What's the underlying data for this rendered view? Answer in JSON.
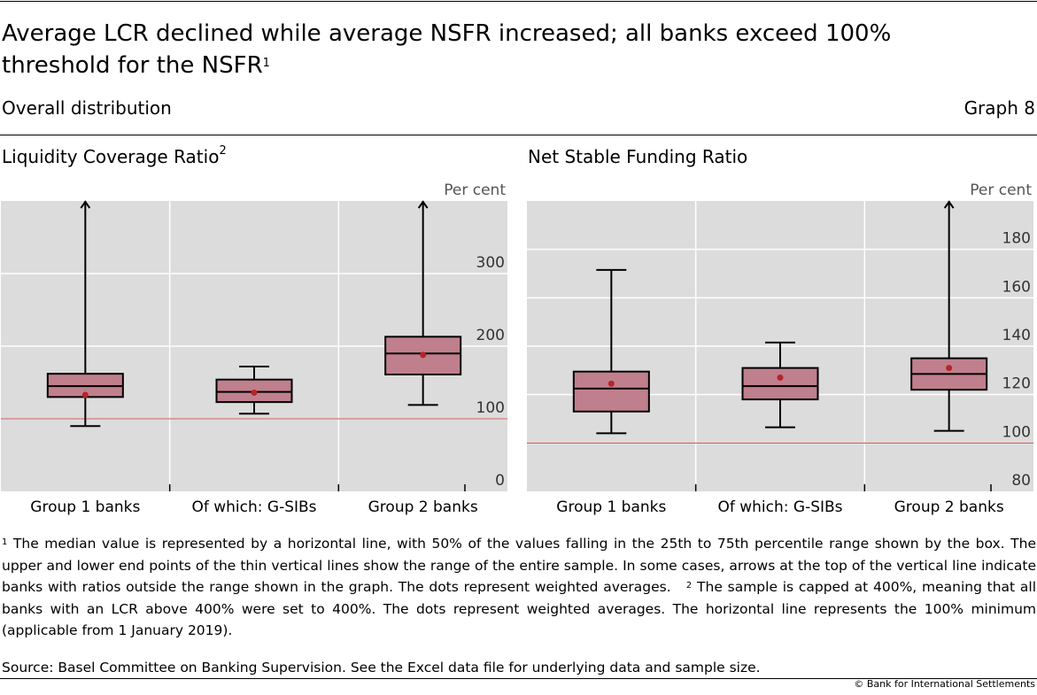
{
  "title": "Average LCR declined while average NSFR increased; all banks exceed 100% threshold for the NSFR",
  "title_note": "1",
  "subtitle": "Overall distribution",
  "graph_label": "Graph 8",
  "colors": {
    "panel_bg": "#dcdcdc",
    "box_fill": "#c07f8d",
    "dot": "#b5252a",
    "threshold": "#c0504d"
  },
  "chart_data": [
    {
      "type": "box",
      "title": "Liquidity Coverage Ratio",
      "title_note": "2",
      "unit_label": "Per cent",
      "categories": [
        "Group 1 banks",
        "Of which: G-SIBs",
        "Group 2 banks"
      ],
      "ylim": [
        0,
        400
      ],
      "yticks": [
        0,
        100,
        200,
        300
      ],
      "threshold": 100,
      "grid": true,
      "boxes": [
        {
          "min": 90,
          "q1": 130,
          "median": 145,
          "q3": 162,
          "max": 400,
          "weighted_avg": 133,
          "arrow": true
        },
        {
          "min": 107,
          "q1": 123,
          "median": 137,
          "q3": 154,
          "max": 172,
          "weighted_avg": 136,
          "arrow": false
        },
        {
          "min": 119,
          "q1": 161,
          "median": 190,
          "q3": 213,
          "max": 400,
          "weighted_avg": 188,
          "arrow": true
        }
      ]
    },
    {
      "type": "box",
      "title": "Net Stable Funding Ratio",
      "unit_label": "Per cent",
      "categories": [
        "Group 1 banks",
        "Of which: G-SIBs",
        "Group 2 banks"
      ],
      "ylim": [
        80,
        200
      ],
      "yticks": [
        80,
        100,
        120,
        140,
        160,
        180
      ],
      "threshold": 100,
      "grid": true,
      "boxes": [
        {
          "min": 104,
          "q1": 113,
          "median": 122.5,
          "q3": 129.5,
          "max": 171.5,
          "weighted_avg": 124.5,
          "arrow": false
        },
        {
          "min": 106.5,
          "q1": 118,
          "median": 123.5,
          "q3": 131,
          "max": 141.5,
          "weighted_avg": 127,
          "arrow": false
        },
        {
          "min": 105,
          "q1": 122,
          "median": 128.5,
          "q3": 135,
          "max": 200,
          "weighted_avg": 131,
          "arrow": true
        }
      ]
    }
  ],
  "footnotes": {
    "note1_marker": "1",
    "note1_text": "The median value is represented by a horizontal line, with 50% of the values falling in the 25th to 75th percentile range shown by the box. The upper and lower end points of the thin vertical lines show the range of the entire sample. In some cases, arrows at the top of the vertical line indicate banks with ratios outside the range shown in the graph. The dots represent weighted averages.",
    "note2_marker": "2",
    "note2_text": "The sample is capped at 400%, meaning that all banks with an LCR above 400% were set to 400%. The dots represent weighted averages. The horizontal line represents the 100% minimum (applicable from 1 January 2019)."
  },
  "source": "Source: Basel Committee on Banking Supervision. See the Excel data file for underlying data and sample size.",
  "copyright": "© Bank for International Settlements"
}
